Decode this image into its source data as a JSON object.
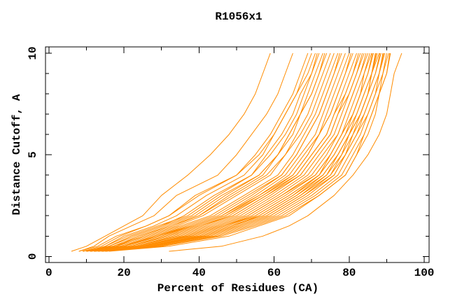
{
  "chart_data": {
    "type": "line",
    "title": "R1056x1",
    "xlabel": "Percent of Residues (CA)",
    "ylabel": "Distance Cutoff, A",
    "xlim": [
      -0.9,
      101.3
    ],
    "ylim": [
      -0.3,
      10.31
    ],
    "x_ticks_major": [
      0,
      20,
      40,
      60,
      80,
      100
    ],
    "x_ticks_minor": [
      10,
      30,
      50,
      70,
      90
    ],
    "y_ticks_major": [
      0,
      5,
      10
    ],
    "y_ticks_minor": [
      1,
      2,
      3,
      4,
      6,
      7,
      8,
      9
    ],
    "x_tick_labels": [
      "0",
      "20",
      "40",
      "60",
      "80",
      "100"
    ],
    "y_tick_labels": [
      "0",
      "5",
      "10"
    ],
    "grid": false,
    "legend": "none",
    "series_color": "#ff8c00",
    "frame_color": "#000000",
    "background_color": "#ffffff",
    "cutoffs": [
      0.25,
      0.5,
      1,
      1.5,
      2,
      3,
      4,
      5,
      6,
      7,
      8,
      9,
      10
    ],
    "curves_percent_at_cutoff": [
      [
        6,
        10,
        15,
        20,
        25,
        30,
        37,
        43,
        48,
        52,
        55,
        57,
        59
      ],
      [
        8,
        12,
        16,
        22,
        28,
        34,
        45,
        50,
        54,
        58,
        61,
        63,
        65
      ],
      [
        8,
        13,
        18,
        26,
        32,
        40,
        50,
        55,
        59,
        62,
        65,
        67,
        69
      ],
      [
        10,
        15,
        20,
        28,
        34,
        42,
        52,
        57,
        60,
        63,
        66,
        68,
        70
      ],
      [
        9,
        14,
        19,
        26,
        32,
        39,
        50,
        56,
        60,
        63,
        66,
        69,
        71
      ],
      [
        11,
        16,
        22,
        30,
        36,
        44,
        54,
        58,
        62,
        65,
        67,
        70,
        71.5
      ],
      [
        10,
        15,
        21,
        29,
        37,
        45,
        54,
        59,
        63,
        66,
        68,
        70,
        72
      ],
      [
        9,
        16,
        23,
        31,
        39,
        47,
        56,
        61,
        64,
        67,
        69,
        71,
        73
      ],
      [
        12,
        18,
        24,
        32,
        40,
        48,
        57,
        61,
        65,
        67,
        70,
        72,
        73.5
      ],
      [
        10,
        16,
        22,
        30,
        38,
        46,
        56,
        61,
        64,
        67,
        70,
        72,
        74
      ],
      [
        11,
        18,
        25,
        34,
        41,
        50,
        59,
        63,
        66,
        69,
        71,
        73,
        75
      ],
      [
        10,
        17,
        24,
        33,
        40,
        49,
        58,
        63,
        67,
        70,
        72,
        74,
        76
      ],
      [
        9,
        17,
        26,
        35,
        43,
        52,
        61,
        65,
        68,
        71,
        73,
        75,
        77
      ],
      [
        12,
        20,
        28,
        37,
        45,
        54,
        62,
        66,
        69,
        72,
        74,
        76,
        77.5
      ],
      [
        10,
        18,
        27,
        36,
        44,
        53,
        62,
        66,
        69,
        72,
        74,
        76,
        78
      ],
      [
        11,
        20,
        29,
        38,
        46,
        55,
        63,
        67,
        71,
        73,
        75,
        77,
        79
      ],
      [
        10,
        19,
        28,
        38,
        46,
        56,
        64,
        68,
        72,
        74,
        76,
        78,
        80
      ],
      [
        13,
        22,
        31,
        40,
        48,
        57,
        65,
        69,
        72,
        75,
        77,
        79,
        80.5
      ],
      [
        11,
        20,
        30,
        39,
        47,
        56,
        65,
        69,
        72,
        75,
        77,
        79,
        81
      ],
      [
        12,
        22,
        32,
        41,
        49,
        58,
        66,
        70,
        74,
        76,
        78,
        80,
        82
      ],
      [
        10,
        19,
        29,
        39,
        47,
        57,
        66,
        70,
        74,
        76,
        79,
        81,
        82.5
      ],
      [
        13,
        23,
        33,
        42,
        50,
        59,
        67,
        71,
        75,
        77,
        79,
        81,
        83
      ],
      [
        11,
        21,
        31,
        40,
        49,
        58,
        67,
        71,
        75,
        77,
        80,
        82,
        83.5
      ],
      [
        12,
        23,
        34,
        43,
        51,
        60,
        68,
        72,
        76,
        78,
        80,
        82,
        84
      ],
      [
        14,
        25,
        36,
        45,
        53,
        62,
        70,
        74,
        77,
        79,
        81,
        83,
        84.5
      ],
      [
        11,
        23,
        35,
        44,
        52,
        61,
        69,
        73,
        77,
        79,
        81,
        83,
        85
      ],
      [
        13,
        25,
        37,
        46,
        54,
        63,
        71,
        75,
        78,
        80,
        82,
        84,
        85.5
      ],
      [
        12,
        25,
        38,
        47,
        55,
        64,
        72,
        75,
        78,
        81,
        83,
        84,
        86
      ],
      [
        15,
        27,
        40,
        49,
        56,
        65,
        72,
        76,
        79,
        81,
        83,
        85,
        86.2
      ],
      [
        12,
        24,
        36,
        45,
        53,
        62,
        71,
        75,
        78,
        81,
        83,
        85,
        86.5
      ],
      [
        14,
        26,
        39,
        48,
        57,
        66,
        73,
        77,
        80,
        82,
        84,
        86,
        87
      ],
      [
        11,
        24,
        37,
        46,
        55,
        64,
        72,
        76,
        79,
        82,
        84,
        86,
        87.2
      ],
      [
        13,
        27,
        41,
        50,
        58,
        67,
        74,
        78,
        80,
        83,
        85,
        86,
        87.5
      ],
      [
        12,
        26,
        40,
        49,
        57,
        66,
        74,
        77,
        80,
        83,
        85,
        86,
        88
      ],
      [
        15,
        28,
        42,
        51,
        59,
        68,
        75,
        78,
        81,
        83,
        85,
        87,
        88.2
      ],
      [
        13,
        25,
        38,
        47,
        56,
        65,
        73,
        77,
        80,
        83,
        85,
        87,
        88.5
      ],
      [
        14,
        28,
        43,
        52,
        60,
        69,
        76,
        79,
        82,
        84,
        86,
        88,
        89
      ],
      [
        12,
        26,
        41,
        50,
        58,
        67,
        75,
        79,
        81,
        84,
        86,
        88,
        89.2
      ],
      [
        14,
        29,
        44,
        53,
        61,
        70,
        77,
        80,
        83,
        85,
        87,
        88,
        89.5
      ],
      [
        13,
        27,
        42,
        51,
        59,
        68,
        76,
        79,
        82,
        85,
        87,
        89,
        90
      ],
      [
        15,
        30,
        45,
        54,
        62,
        71,
        78,
        81,
        84,
        86,
        88,
        89,
        90.5
      ],
      [
        14,
        30,
        46,
        55,
        63,
        72,
        79,
        82,
        85,
        87,
        88,
        90,
        91
      ],
      [
        16,
        32,
        48,
        56,
        64,
        72,
        79,
        82,
        84,
        86,
        88,
        90,
        90.8
      ],
      [
        32,
        46,
        57,
        64,
        69,
        76,
        81,
        85,
        88,
        90,
        91,
        92,
        94
      ]
    ]
  }
}
